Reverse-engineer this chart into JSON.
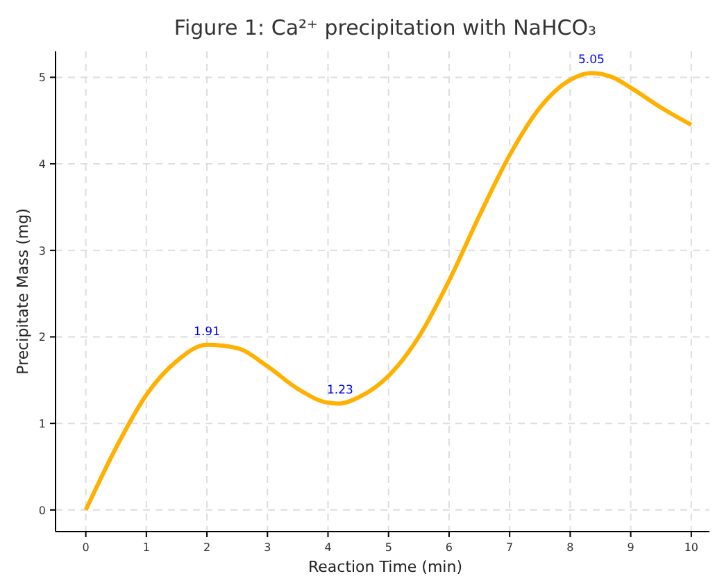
{
  "chart_data": {
    "type": "line",
    "title": "Figure 1: Ca²⁺ precipitation with NaHCO₃",
    "xlabel": "Reaction Time (min)",
    "ylabel": "Precipitate Mass (mg)",
    "x": [
      0,
      0.5,
      1,
      1.5,
      2,
      2.5,
      3,
      3.5,
      4,
      4.2,
      4.5,
      5,
      5.5,
      6,
      6.5,
      7,
      7.5,
      8,
      8.35,
      8.7,
      9,
      9.5,
      10
    ],
    "series": [
      {
        "color": "#ffb000",
        "values": [
          0,
          0.72,
          1.33,
          1.72,
          1.91,
          1.87,
          1.66,
          1.4,
          1.24,
          1.23,
          1.3,
          1.55,
          2.0,
          2.65,
          3.4,
          4.1,
          4.65,
          4.97,
          5.05,
          5.0,
          4.88,
          4.65,
          4.45
        ]
      }
    ],
    "xlim": [
      -0.5,
      10.3
    ],
    "ylim": [
      -0.25,
      5.3
    ],
    "xticks": [
      0,
      1,
      2,
      3,
      4,
      5,
      6,
      7,
      8,
      9,
      10
    ],
    "yticks": [
      0,
      1,
      2,
      3,
      4,
      5
    ],
    "grid": true,
    "line_style": "solid",
    "marker": "none",
    "annotations": [
      {
        "text": "1.91",
        "x": 2,
        "y": 1.91
      },
      {
        "text": "1.23",
        "x": 4.2,
        "y": 1.23
      },
      {
        "text": "5.05",
        "x": 8.35,
        "y": 5.05
      }
    ]
  }
}
